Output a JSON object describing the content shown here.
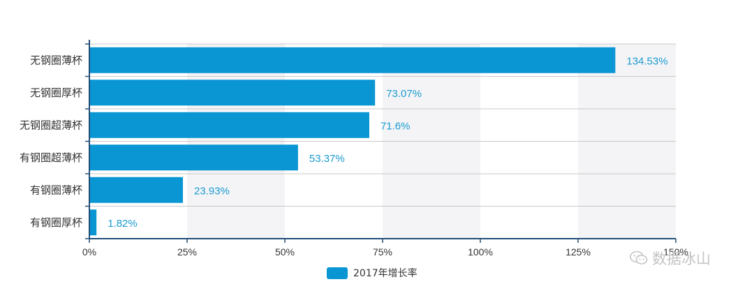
{
  "chart_data": {
    "type": "bar",
    "orientation": "horizontal",
    "categories": [
      "无钢圈薄杯",
      "无钢圈厚杯",
      "无钢圈超薄杯",
      "有钢圈超薄杯",
      "有钢圈薄杯",
      "有钢圈厚杯"
    ],
    "series": [
      {
        "name": "2017年增长率",
        "values": [
          134.53,
          73.07,
          71.6,
          53.37,
          23.93,
          1.82
        ],
        "data_labels": [
          "134.53%",
          "73.07%",
          "71.6%",
          "53.37%",
          "23.93%",
          "1.82%"
        ]
      }
    ],
    "x_ticks": [
      "0%",
      "25%",
      "50%",
      "75%",
      "100%",
      "125%",
      "150%"
    ],
    "xlim": [
      0,
      150
    ],
    "xlabel": "",
    "ylabel": "",
    "grid": "alternating vertical bands",
    "legend_position": "bottom-center",
    "bar_color": "#0996d3",
    "label_color": "#1a9bd0",
    "band_color": "#f4f4f6"
  },
  "watermark": {
    "text": "数据冰山",
    "icon": "wechat-icon"
  }
}
